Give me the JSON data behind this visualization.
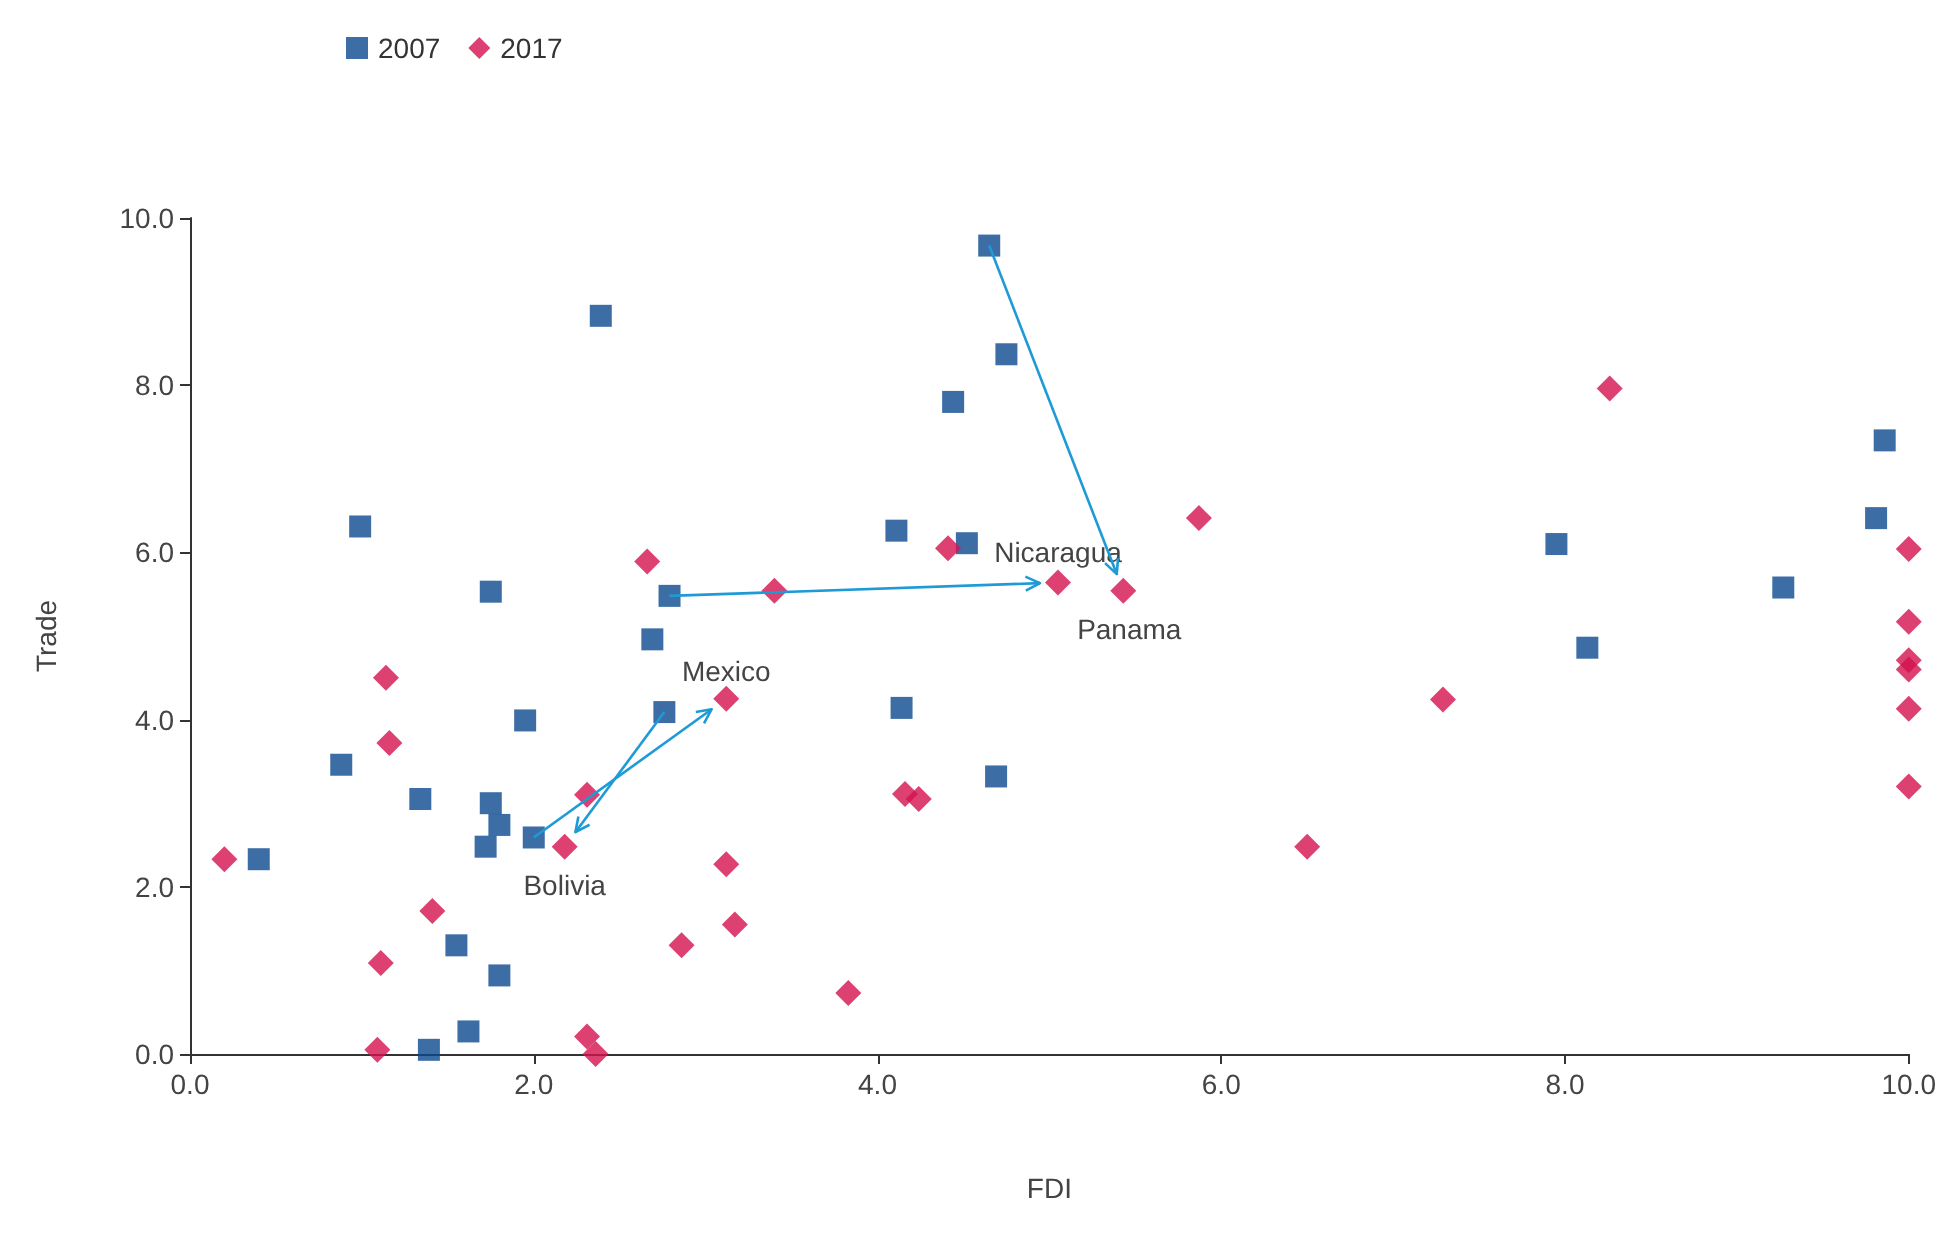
{
  "chart_data": {
    "type": "scatter",
    "xlabel": "FDI",
    "ylabel": "Trade",
    "legend": "top left",
    "grid": false,
    "xlim": [
      0,
      10
    ],
    "xticks": [
      {
        "value": 0,
        "label": "0.0"
      },
      {
        "value": 2,
        "label": "2.0"
      },
      {
        "value": 4,
        "label": "4.0"
      },
      {
        "value": 6,
        "label": "6.0"
      },
      {
        "value": 8,
        "label": "8.0"
      },
      {
        "value": 10,
        "label": "10.0"
      }
    ],
    "ylim": [
      0,
      10
    ],
    "yticks": [
      {
        "value": 0,
        "label": "0.0"
      },
      {
        "value": 2,
        "label": "2.0"
      },
      {
        "value": 4,
        "label": "4.0"
      },
      {
        "value": 6,
        "label": "6.0"
      },
      {
        "value": 8,
        "label": "8.0"
      },
      {
        "value": 10,
        "label": "10.0"
      }
    ],
    "series": [
      {
        "name": "2007",
        "color": "#0b4a8f",
        "marker": "square",
        "x": [
          2.39,
          0.99,
          1.75,
          2.79,
          2.69,
          2.76,
          1.95,
          0.88,
          1.34,
          1.75,
          1.8,
          1.72,
          2.0,
          0.4,
          1.55,
          1.8,
          1.62,
          1.39,
          4.65,
          4.75,
          4.44,
          4.11,
          4.52,
          4.14,
          4.69,
          9.86,
          9.81,
          7.95,
          9.27,
          8.13
        ],
        "values": [
          8.83,
          6.31,
          5.53,
          5.48,
          4.96,
          4.09,
          3.99,
          3.46,
          3.05,
          3.0,
          2.74,
          2.48,
          2.59,
          2.33,
          1.3,
          0.94,
          0.27,
          0.05,
          9.67,
          8.37,
          7.8,
          6.26,
          6.11,
          4.14,
          3.32,
          7.34,
          6.41,
          6.1,
          5.58,
          4.86
        ]
      },
      {
        "name": "2017",
        "color": "#d3124f",
        "marker": "diamond",
        "x": [
          2.66,
          1.14,
          1.16,
          3.12,
          2.31,
          2.18,
          0.2,
          3.12,
          1.41,
          3.17,
          2.86,
          1.11,
          1.09,
          2.31,
          2.36,
          3.4,
          4.41,
          5.05,
          5.43,
          5.87,
          4.16,
          4.24,
          3.83,
          6.5,
          8.26,
          7.29,
          10,
          10,
          10,
          10,
          10,
          10
        ],
        "values": [
          5.89,
          4.5,
          3.72,
          4.25,
          3.1,
          2.48,
          2.33,
          2.27,
          1.71,
          1.55,
          1.3,
          1.09,
          0.05,
          0.21,
          0,
          5.54,
          6.05,
          5.64,
          5.54,
          6.41,
          3.11,
          3.05,
          0.73,
          2.48,
          7.96,
          4.24,
          6.04,
          5.17,
          4.71,
          4.6,
          4.13,
          3.2
        ]
      }
    ],
    "annotations": [
      {
        "text": "Nicaragua",
        "x": 5.05,
        "y": 5.64
      },
      {
        "text": "Panama",
        "x": 5.43,
        "y": 5.54
      },
      {
        "text": "Mexico",
        "x": 3.12,
        "y": 4.25
      },
      {
        "text": "Bolivia",
        "x": 2.18,
        "y": 2.48
      }
    ]
  }
}
